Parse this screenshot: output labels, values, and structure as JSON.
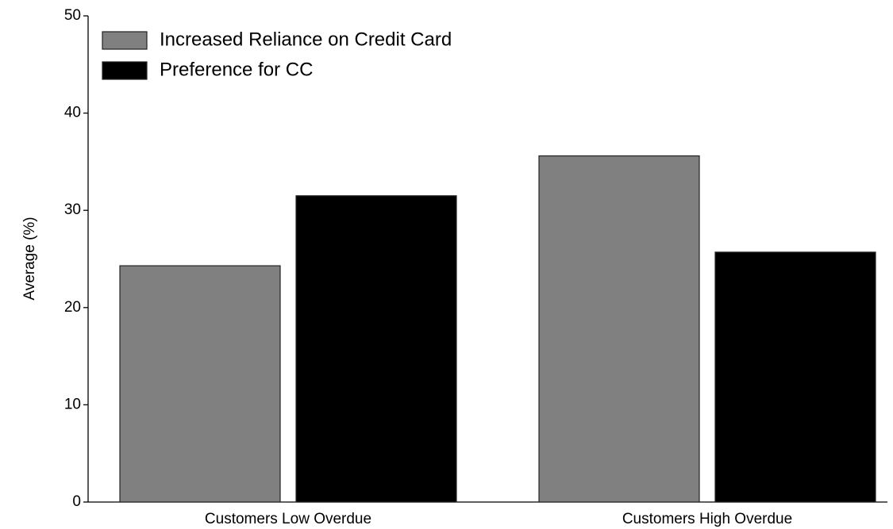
{
  "chart_data": {
    "type": "bar",
    "categories": [
      "Customers Low Overdue",
      "Customers High Overdue"
    ],
    "series": [
      {
        "name": "Increased Reliance on Credit Card",
        "color": "#808080",
        "values": [
          24.3,
          35.6
        ]
      },
      {
        "name": "Preference for CC",
        "color": "#000000",
        "values": [
          31.5,
          25.7
        ]
      }
    ],
    "y_label": "Average (%)",
    "ylim": [
      0,
      50
    ],
    "yticks": [
      0,
      10,
      20,
      30,
      40,
      50
    ],
    "grid": false,
    "legend": "upper left"
  }
}
